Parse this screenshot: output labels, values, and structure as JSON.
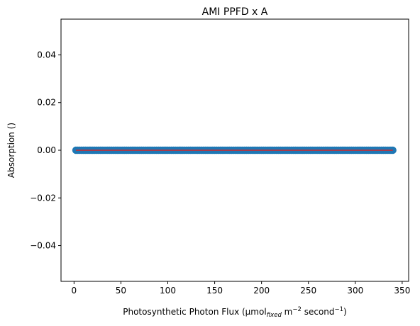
{
  "chart_data": {
    "type": "scatter",
    "title": "AMI PPFD x A",
    "xlabel": {
      "main": "Photosynthetic Photon Flux (μmol",
      "sub": "fixed",
      "mid": " m",
      "sup1": "−2",
      "mid2": " second",
      "sup2": "−1",
      "end": ")"
    },
    "ylabel": "Absorption ()",
    "xlim": [
      -13.9,
      356.9
    ],
    "ylim": [
      -0.055,
      0.055
    ],
    "xticks": [
      0,
      50,
      100,
      150,
      200,
      250,
      300,
      350
    ],
    "yticks": [
      -0.04,
      -0.02,
      0.0,
      0.02,
      0.04
    ],
    "ytick_labels": [
      "−0.04",
      "−0.02",
      "0.00",
      "0.02",
      "0.04"
    ],
    "grid": false,
    "series": [
      {
        "kind": "scatter",
        "color": "#1f77b4",
        "x_start": 2,
        "x_end": 340,
        "x_step": 2,
        "y_constant": 0
      },
      {
        "kind": "line",
        "color": "#d62728",
        "x": [
          2,
          340
        ],
        "y": [
          0,
          0
        ]
      }
    ]
  }
}
